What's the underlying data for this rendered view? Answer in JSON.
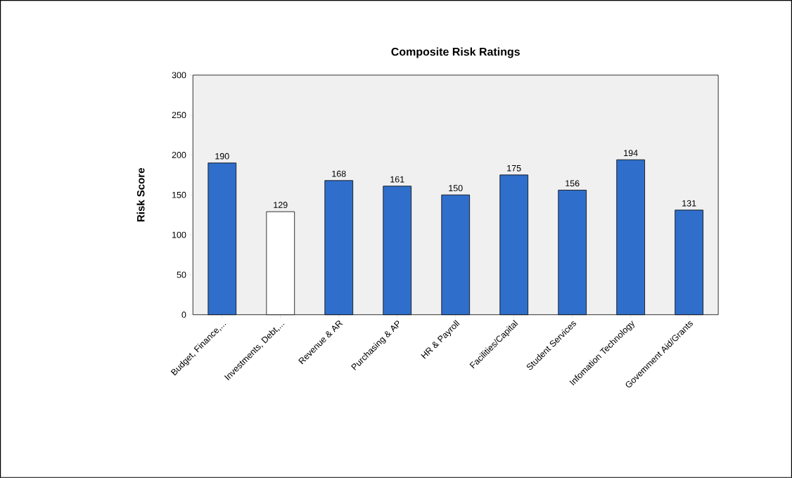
{
  "chart_data": {
    "type": "bar",
    "title": "Composite Risk Ratings",
    "ylabel": "Risk Score",
    "categories": [
      "Budget, Finance,...",
      "Investments, Debt,...",
      "Revenue & AR",
      "Purchasing & AP",
      "HR & Payroll",
      "Facilities/Capital",
      "Student Services",
      "Infomation Technology",
      "Govemment Aid/Grants"
    ],
    "values": [
      190,
      129,
      168,
      161,
      150,
      175,
      156,
      194,
      131
    ],
    "colors": [
      "#2f6fcb",
      "#ffffff",
      "#2f6fcb",
      "#2f6fcb",
      "#2f6fcb",
      "#2f6fcb",
      "#2f6fcb",
      "#2f6fcb",
      "#2f6fcb"
    ],
    "ylim": [
      0,
      300
    ],
    "yticks": [
      0,
      50,
      100,
      150,
      200,
      250,
      300
    ],
    "data_labels": true
  }
}
